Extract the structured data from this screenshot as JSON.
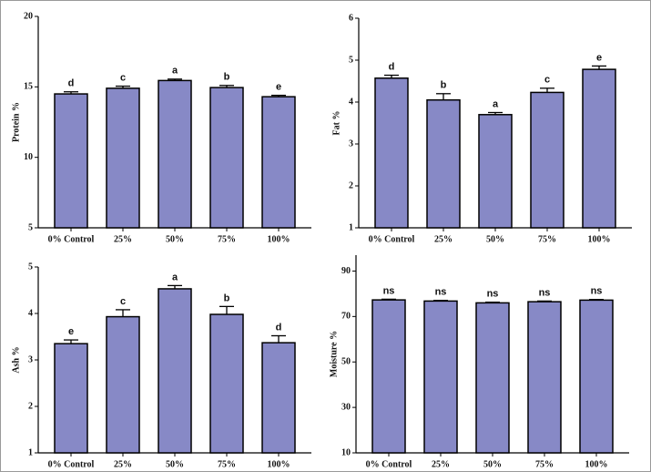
{
  "chart_data": [
    {
      "type": "bar",
      "y_label": "Protein %",
      "categories": [
        "0% Control",
        "25%",
        "50%",
        "75%",
        "100%"
      ],
      "values": [
        14.5,
        14.9,
        15.45,
        14.95,
        14.3
      ],
      "errors": [
        0.15,
        0.15,
        0.1,
        0.15,
        0.1
      ],
      "annotations": [
        "d",
        "c",
        "a",
        "b",
        "e"
      ],
      "color": "#8789c6",
      "ylim": [
        5,
        20
      ],
      "yticks": [
        5,
        10,
        15,
        20
      ]
    },
    {
      "type": "bar",
      "y_label": "Fat %",
      "categories": [
        "0% Control",
        "25%",
        "50%",
        "75%",
        "100%"
      ],
      "values": [
        4.57,
        4.05,
        3.7,
        4.23,
        4.78
      ],
      "errors": [
        0.07,
        0.15,
        0.05,
        0.1,
        0.08
      ],
      "annotations": [
        "d",
        "b",
        "a",
        "c",
        "e"
      ],
      "color": "#8789c6",
      "ylim": [
        1,
        6
      ],
      "yticks": [
        1,
        2,
        3,
        4,
        5,
        6
      ]
    },
    {
      "type": "bar",
      "y_label": "Ash %",
      "categories": [
        "0% Control",
        "25%",
        "50%",
        "75%",
        "100%"
      ],
      "values": [
        3.35,
        3.93,
        4.53,
        3.98,
        3.37
      ],
      "errors": [
        0.08,
        0.15,
        0.07,
        0.17,
        0.15
      ],
      "annotations": [
        "e",
        "c",
        "a",
        "b",
        "d"
      ],
      "color": "#8789c6",
      "ylim": [
        1,
        5
      ],
      "yticks": [
        1,
        2,
        3,
        4,
        5
      ]
    },
    {
      "type": "bar",
      "y_label": "Moisture %",
      "categories": [
        "0% Control",
        "25%",
        "50%",
        "75%",
        "100%"
      ],
      "values": [
        77.3,
        76.8,
        76.0,
        76.5,
        77.2
      ],
      "errors": [
        0.3,
        0.3,
        0.3,
        0.3,
        0.3
      ],
      "annotations": [
        "ns",
        "ns",
        "ns",
        "ns",
        "ns"
      ],
      "color": "#8789c6",
      "ylim": [
        10,
        97
      ],
      "yticks": [
        10,
        30,
        50,
        70,
        90
      ]
    }
  ]
}
